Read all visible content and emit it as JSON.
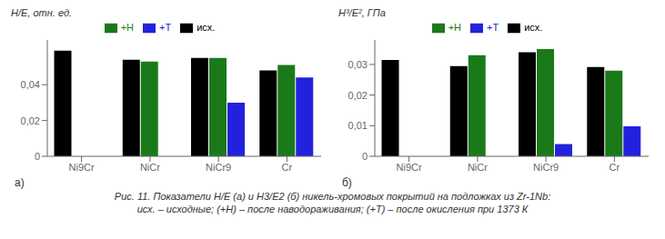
{
  "chart_data": [
    {
      "type": "bar",
      "title": "а)",
      "y_label": "H/E, отн. ед.",
      "categories": [
        "Ni9Cr",
        "NiCr",
        "NiCr9",
        "Cr"
      ],
      "series": [
        {
          "name": "исх.",
          "color": "#000000",
          "values": [
            0.059,
            0.054,
            0.055,
            0.048
          ]
        },
        {
          "name": "+Н",
          "color": "#1a7a1a",
          "values": [
            null,
            0.053,
            0.055,
            0.051
          ]
        },
        {
          "name": "+Т",
          "color": "#2222dd",
          "values": [
            null,
            null,
            0.03,
            0.044
          ]
        }
      ],
      "ylim": [
        0,
        0.065
      ],
      "yticks": [
        0,
        {
          "value": 0.02,
          "label": "0,02"
        },
        {
          "value": 0.04,
          "label": "0,04"
        }
      ],
      "grid": false,
      "legend": "top"
    },
    {
      "type": "bar",
      "title": "б)",
      "y_label": "H³/E², ГПа",
      "categories": [
        "Ni9Cr",
        "NiCr",
        "NiCr9",
        "Cr"
      ],
      "series": [
        {
          "name": "исх.",
          "color": "#000000",
          "values": [
            0.0315,
            0.0295,
            0.034,
            0.0292
          ]
        },
        {
          "name": "+Н",
          "color": "#1a7a1a",
          "values": [
            null,
            0.033,
            0.035,
            0.028
          ]
        },
        {
          "name": "+Т",
          "color": "#2222dd",
          "values": [
            null,
            null,
            0.004,
            0.0098
          ]
        }
      ],
      "ylim": [
        0,
        0.038
      ],
      "yticks": [
        0,
        {
          "value": 0.01,
          "label": "0,01"
        },
        {
          "value": 0.02,
          "label": "0,02"
        },
        {
          "value": 0.03,
          "label": "0,03"
        }
      ],
      "grid": false,
      "legend": "top"
    }
  ],
  "annotations": [
    "Рис. 11. Показатели H/E (а) и H3/E2 (б) никель-хромовых покрытий на подложках из Zr-1Nb:",
    "исх. – исходные; (+Н) – после наводораживания; (+Т) – после окисления при 1373 К"
  ]
}
